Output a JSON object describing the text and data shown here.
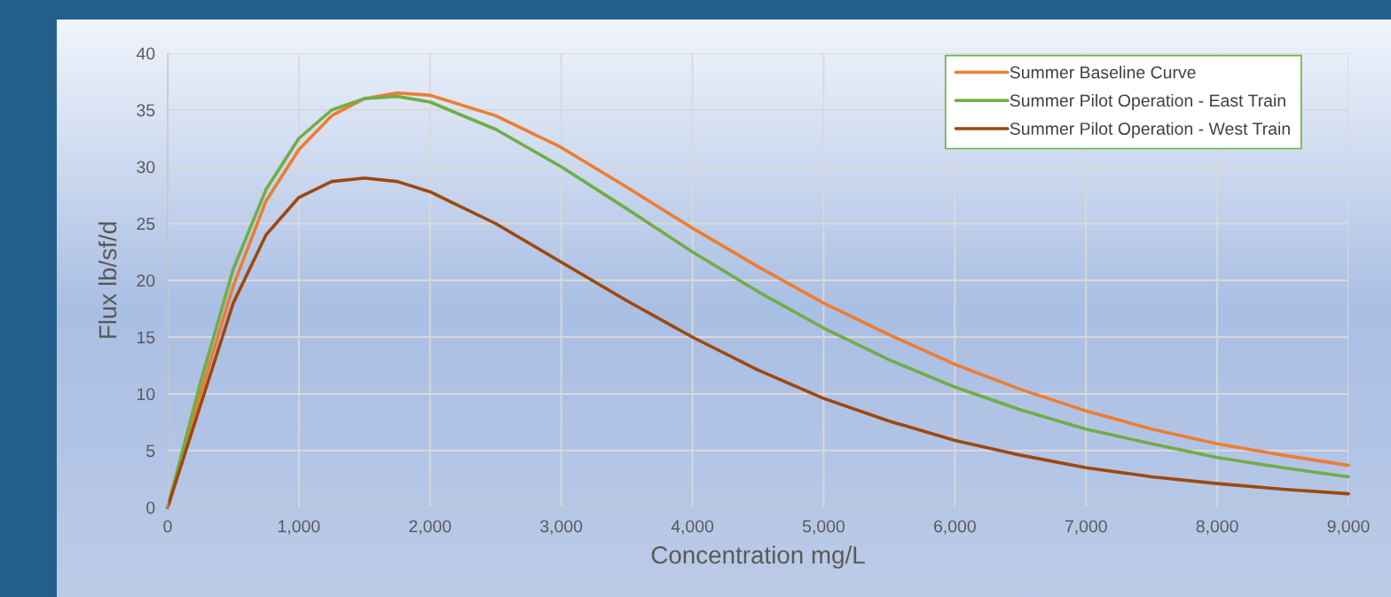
{
  "chart_data": {
    "type": "line",
    "xlabel": "Concentration mg/L",
    "ylabel": "Flux lb/sf/d",
    "x": [
      0,
      250,
      500,
      750,
      1000,
      1250,
      1500,
      1750,
      2000,
      2500,
      3000,
      3500,
      4000,
      4500,
      5000,
      5500,
      6000,
      6500,
      7000,
      7500,
      8000,
      8500,
      9000
    ],
    "series": [
      {
        "name": "Summer Baseline Curve",
        "color": "#ed7d31",
        "values": [
          0,
          10,
          19.5,
          27,
          31.5,
          34.5,
          36,
          36.5,
          36.3,
          34.5,
          31.7,
          28.2,
          24.6,
          21.2,
          18,
          15.2,
          12.6,
          10.4,
          8.5,
          6.9,
          5.6,
          4.6,
          3.7
        ]
      },
      {
        "name": "Summer Pilot Operation - East Train",
        "color": "#70ad47",
        "values": [
          0,
          11,
          21,
          28,
          32.5,
          35,
          36,
          36.2,
          35.7,
          33.3,
          30,
          26.3,
          22.5,
          19,
          15.8,
          13,
          10.6,
          8.6,
          6.9,
          5.6,
          4.4,
          3.5,
          2.7
        ]
      },
      {
        "name": "Summer Pilot Operation - West Train",
        "color": "#9e480e",
        "values": [
          0,
          9,
          18,
          24,
          27.3,
          28.7,
          29,
          28.7,
          27.8,
          25,
          21.6,
          18.2,
          15,
          12.1,
          9.6,
          7.6,
          5.9,
          4.6,
          3.5,
          2.7,
          2.1,
          1.6,
          1.2
        ]
      }
    ],
    "xlim": [
      0,
      9000
    ],
    "ylim": [
      0,
      40
    ],
    "xticks": [
      0,
      {
        "value": 1000,
        "label": "1,000"
      },
      {
        "value": 2000,
        "label": "2,000"
      },
      {
        "value": 3000,
        "label": "3,000"
      },
      {
        "value": 4000,
        "label": "4,000"
      },
      {
        "value": 5000,
        "label": "5,000"
      },
      {
        "value": 6000,
        "label": "6,000"
      },
      {
        "value": 7000,
        "label": "7,000"
      },
      {
        "value": 8000,
        "label": "8,000"
      },
      {
        "value": 9000,
        "label": "9,000"
      }
    ],
    "yticks": [
      0,
      5,
      10,
      15,
      20,
      25,
      30,
      35,
      40
    ],
    "grid": true,
    "legend": "top right",
    "line_style": "solid",
    "marker": "none"
  }
}
